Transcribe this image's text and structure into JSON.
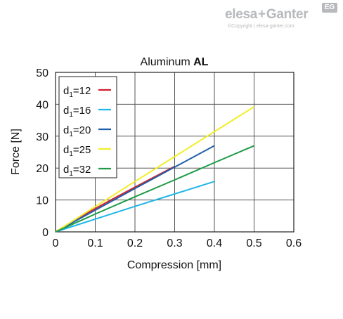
{
  "logo": {
    "brand_a": "elesa",
    "plus": "+",
    "brand_b": "Ganter",
    "badge": "EG",
    "copyright": "©Copyright | elesa-ganter.com"
  },
  "colors": {
    "d12": "#d0202e",
    "d16": "#1fb6e8",
    "d20": "#1f5ea8",
    "d25": "#f2ee2a",
    "d32": "#1e9a48",
    "grid": "#555555",
    "logo_grey": "#b7b9bc"
  },
  "chart_data": {
    "type": "line",
    "title_normal": "Aluminum ",
    "title_bold": "AL",
    "xlabel": "Compression [mm]",
    "ylabel": "Force [N]",
    "xlim": [
      0,
      0.6
    ],
    "ylim": [
      0,
      50
    ],
    "xticks": [
      "0",
      "0.1",
      "0.2",
      "0.3",
      "0.4",
      "0.5",
      "0.6"
    ],
    "yticks": [
      "0",
      "10",
      "20",
      "30",
      "40",
      "50"
    ],
    "grid": true,
    "legend_position": "top-left",
    "series": [
      {
        "name_base": "d",
        "name_sub": "1",
        "name_rest": "=12",
        "color_key": "d12",
        "x": [
          0,
          0.05,
          0.1,
          0.15,
          0.2,
          0.25,
          0.3
        ],
        "y": [
          0,
          3.9,
          7.3,
          10.7,
          14.0,
          17.3,
          20.5
        ]
      },
      {
        "name_base": "d",
        "name_sub": "1",
        "name_rest": "=16",
        "color_key": "d16",
        "x": [
          0,
          0.1,
          0.2,
          0.3,
          0.4
        ],
        "y": [
          0,
          4.0,
          8.0,
          11.9,
          15.8
        ]
      },
      {
        "name_base": "d",
        "name_sub": "1",
        "name_rest": "=20",
        "color_key": "d20",
        "x": [
          0,
          0.1,
          0.2,
          0.3,
          0.4
        ],
        "y": [
          0,
          6.8,
          13.6,
          20.3,
          27.0
        ]
      },
      {
        "name_base": "d",
        "name_sub": "1",
        "name_rest": "=25",
        "color_key": "d25",
        "x": [
          0,
          0.1,
          0.2,
          0.3,
          0.4,
          0.5
        ],
        "y": [
          0,
          7.9,
          15.8,
          23.6,
          31.4,
          39.2
        ]
      },
      {
        "name_base": "d",
        "name_sub": "1",
        "name_rest": "=32",
        "color_key": "d32",
        "x": [
          0,
          0.1,
          0.2,
          0.3,
          0.4,
          0.5
        ],
        "y": [
          0,
          5.6,
          11.0,
          16.3,
          21.7,
          27.0
        ]
      }
    ]
  }
}
